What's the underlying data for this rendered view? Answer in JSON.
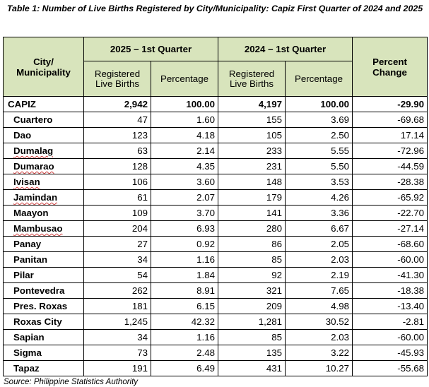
{
  "caption": "Table 1: Number of Live Births Registered by City/Municipality: Capiz First Quarter of 2024 and 2025",
  "headers": {
    "location": "City/ Municipality",
    "period_a": "2025 – 1st Quarter",
    "period_b": "2024 – 1st Quarter",
    "change": "Percent Change",
    "births": "Registered Live Births",
    "percentage": "Percentage"
  },
  "total": {
    "name": "CAPIZ",
    "births_2025": "2,942",
    "pct_2025": "100.00",
    "births_2024": "4,197",
    "pct_2024": "100.00",
    "change": "-29.90"
  },
  "rows": [
    {
      "name": "Cuartero",
      "births_2025": "47",
      "pct_2025": "1.60",
      "births_2024": "155",
      "pct_2024": "3.69",
      "change": "-69.68",
      "wavy": false
    },
    {
      "name": "Dao",
      "births_2025": "123",
      "pct_2025": "4.18",
      "births_2024": "105",
      "pct_2024": "2.50",
      "change": "17.14",
      "wavy": false
    },
    {
      "name": "Dumalag",
      "births_2025": "63",
      "pct_2025": "2.14",
      "births_2024": "233",
      "pct_2024": "5.55",
      "change": "-72.96",
      "wavy": true
    },
    {
      "name": "Dumarao",
      "births_2025": "128",
      "pct_2025": "4.35",
      "births_2024": "231",
      "pct_2024": "5.50",
      "change": "-44.59",
      "wavy": true
    },
    {
      "name": "Ivisan",
      "births_2025": "106",
      "pct_2025": "3.60",
      "births_2024": "148",
      "pct_2024": "3.53",
      "change": "-28.38",
      "wavy": true
    },
    {
      "name": "Jamindan",
      "births_2025": "61",
      "pct_2025": "2.07",
      "births_2024": "179",
      "pct_2024": "4.26",
      "change": "-65.92",
      "wavy": true
    },
    {
      "name": "Maayon",
      "births_2025": "109",
      "pct_2025": "3.70",
      "births_2024": "141",
      "pct_2024": "3.36",
      "change": "-22.70",
      "wavy": false
    },
    {
      "name": "Mambusao",
      "births_2025": "204",
      "pct_2025": "6.93",
      "births_2024": "280",
      "pct_2024": "6.67",
      "change": "-27.14",
      "wavy": true
    },
    {
      "name": "Panay",
      "births_2025": "27",
      "pct_2025": "0.92",
      "births_2024": "86",
      "pct_2024": "2.05",
      "change": "-68.60",
      "wavy": false
    },
    {
      "name": "Panitan",
      "births_2025": "34",
      "pct_2025": "1.16",
      "births_2024": "85",
      "pct_2024": "2.03",
      "change": "-60.00",
      "wavy": false
    },
    {
      "name": "Pilar",
      "births_2025": "54",
      "pct_2025": "1.84",
      "births_2024": "92",
      "pct_2024": "2.19",
      "change": "-41.30",
      "wavy": false
    },
    {
      "name": "Pontevedra",
      "births_2025": "262",
      "pct_2025": "8.91",
      "births_2024": "321",
      "pct_2024": "7.65",
      "change": "-18.38",
      "wavy": false
    },
    {
      "name": "Pres. Roxas",
      "births_2025": "181",
      "pct_2025": "6.15",
      "births_2024": "209",
      "pct_2024": "4.98",
      "change": "-13.40",
      "wavy": false
    },
    {
      "name": "Roxas City",
      "births_2025": "1,245",
      "pct_2025": "42.32",
      "births_2024": "1,281",
      "pct_2024": "30.52",
      "change": "-2.81",
      "wavy": false
    },
    {
      "name": "Sapian",
      "births_2025": "34",
      "pct_2025": "1.16",
      "births_2024": "85",
      "pct_2024": "2.03",
      "change": "-60.00",
      "wavy": false
    },
    {
      "name": "Sigma",
      "births_2025": "73",
      "pct_2025": "2.48",
      "births_2024": "135",
      "pct_2024": "3.22",
      "change": "-45.93",
      "wavy": false
    },
    {
      "name": "Tapaz",
      "births_2025": "191",
      "pct_2025": "6.49",
      "births_2024": "431",
      "pct_2024": "10.27",
      "change": "-55.68",
      "wavy": false
    }
  ],
  "source": "Source: Philippine Statistics Authority",
  "colors": {
    "header_fill": "#d8e4bc",
    "border": "#000000"
  }
}
